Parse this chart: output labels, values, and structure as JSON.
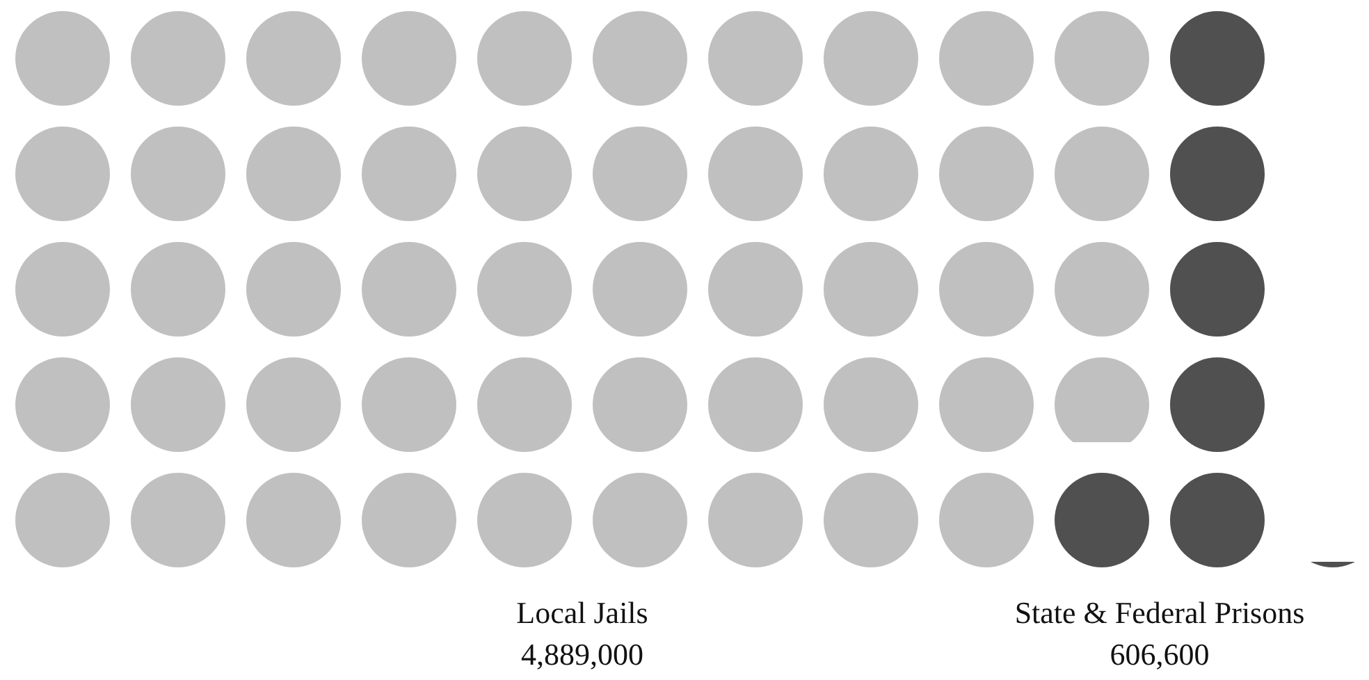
{
  "chart_data": {
    "type": "other",
    "categories": [
      "Local Jails",
      "State & Federal Prisons"
    ],
    "values": [
      4889000,
      606600
    ],
    "value_labels": [
      "4,889,000",
      "606,600"
    ],
    "colors": [
      "#c0c0c0",
      "#505050"
    ]
  }
}
